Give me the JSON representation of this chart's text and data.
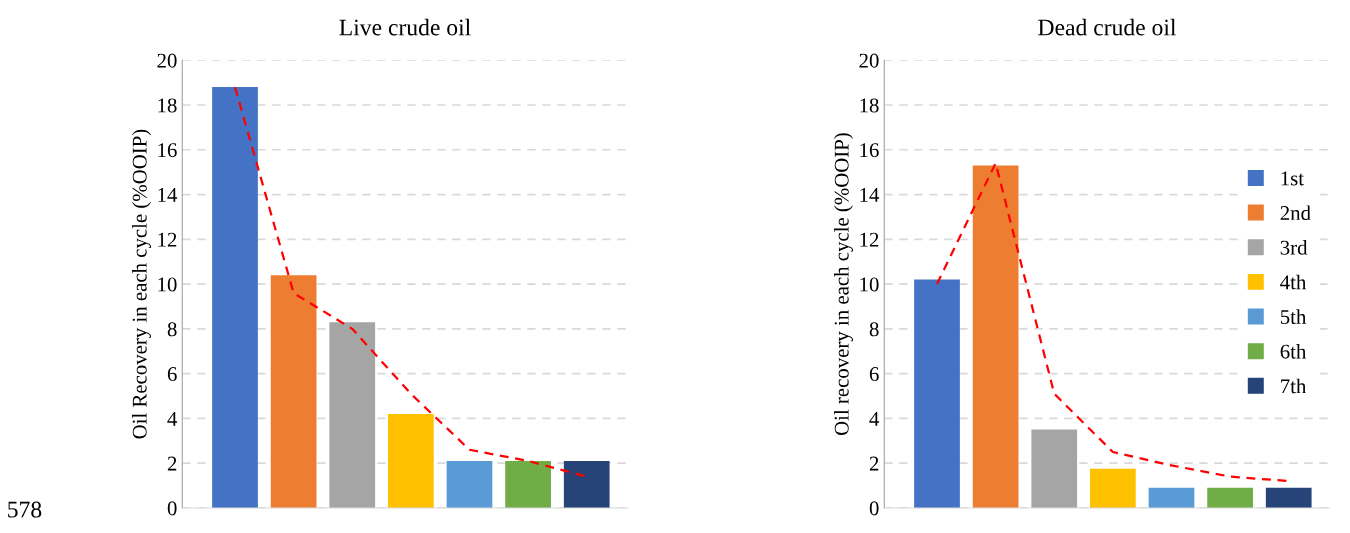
{
  "chart_data": [
    {
      "type": "bar",
      "title": "Live crude oil",
      "ylabel": "Oil Recovery in each cycle (%OOIP)",
      "categories": [
        null,
        null,
        null,
        null,
        null,
        null,
        null
      ],
      "stacked": true,
      "ylim": [
        0,
        20
      ],
      "yticks": [
        0,
        2,
        4,
        6,
        8,
        10,
        12,
        14,
        16,
        18,
        20
      ],
      "grid": "y",
      "legend": false,
      "annotations": [
        "578"
      ],
      "series": [
        {
          "color": "#4472c4",
          "values": [
            18.8,
            null,
            null,
            null,
            null,
            null,
            null
          ]
        },
        {
          "color": "#ed7d31",
          "values": [
            null,
            10.4,
            null,
            null,
            null,
            null,
            null
          ]
        },
        {
          "color": "#a5a5a5",
          "values": [
            null,
            null,
            8.3,
            null,
            null,
            null,
            null
          ]
        },
        {
          "color": "#ffc000",
          "values": [
            null,
            null,
            null,
            4.2,
            null,
            null,
            null
          ]
        },
        {
          "color": "#5b9bd5",
          "values": [
            null,
            null,
            null,
            null,
            2.1,
            null,
            null
          ]
        },
        {
          "color": "#70ad47",
          "values": [
            null,
            null,
            null,
            null,
            null,
            2.1,
            null
          ]
        },
        {
          "color": "#264478",
          "values": [
            null,
            null,
            null,
            null,
            null,
            null,
            2.1
          ]
        },
        {
          "type": "line",
          "color": "#ff0000",
          "line_style": "dashed",
          "values": [
            18.8,
            9.6,
            8.0,
            5.1,
            2.6,
            2.1,
            1.4
          ]
        }
      ]
    },
    {
      "type": "bar",
      "title": "Dead crude oil",
      "ylabel": "Oil recovery in each cycle (%OOIP)",
      "categories": [
        null,
        null,
        null,
        null,
        null,
        null,
        null
      ],
      "stacked": true,
      "ylim": [
        0,
        20
      ],
      "yticks": [
        0,
        2,
        4,
        6,
        8,
        10,
        12,
        14,
        16,
        18,
        20
      ],
      "grid": "y",
      "legend": "right",
      "series": [
        {
          "name": "1st",
          "color": "#4472c4",
          "values": [
            10.2,
            null,
            null,
            null,
            null,
            null,
            null
          ]
        },
        {
          "name": "2nd",
          "color": "#ed7d31",
          "values": [
            null,
            15.3,
            null,
            null,
            null,
            null,
            null
          ]
        },
        {
          "name": "3rd",
          "color": "#a5a5a5",
          "values": [
            null,
            null,
            3.5,
            null,
            null,
            null,
            null
          ]
        },
        {
          "name": "4th",
          "color": "#ffc000",
          "values": [
            null,
            null,
            null,
            1.75,
            null,
            null,
            null
          ]
        },
        {
          "name": "5th",
          "color": "#5b9bd5",
          "values": [
            null,
            null,
            null,
            null,
            0.9,
            null,
            null
          ]
        },
        {
          "name": "6th",
          "color": "#70ad47",
          "values": [
            null,
            null,
            null,
            null,
            null,
            0.9,
            null
          ]
        },
        {
          "name": "7th",
          "color": "#264478",
          "values": [
            null,
            null,
            null,
            null,
            null,
            null,
            0.9
          ]
        },
        {
          "type": "line",
          "color": "#ff0000",
          "line_style": "dashed",
          "values": [
            10.0,
            15.4,
            5.1,
            2.5,
            1.9,
            1.4,
            1.2
          ]
        }
      ]
    }
  ]
}
